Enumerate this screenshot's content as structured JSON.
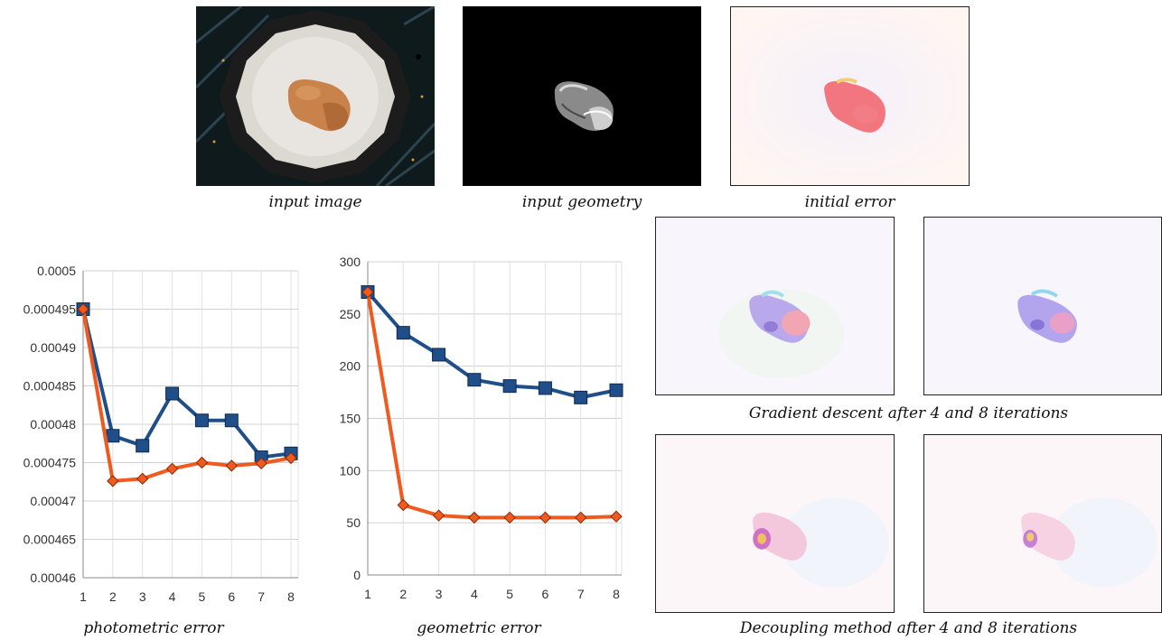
{
  "captions": {
    "input_image": "input image",
    "input_geometry": "input geometry",
    "initial_error": "initial error",
    "gradient_descent": "Gradient descent after 4 and 8 iterations",
    "decoupling": "Decoupling method after 4 and 8 iterations",
    "photometric": "photometric error",
    "geometric": "geometric error"
  },
  "colors": {
    "blue_series": "#1f4e89",
    "orange_series": "#f05a1e",
    "grid": "#d0d0d0"
  },
  "chart_data": [
    {
      "type": "line",
      "title": "",
      "caption": "photometric error",
      "x": [
        1,
        2,
        3,
        4,
        5,
        6,
        7,
        8
      ],
      "ylim": [
        0.00046,
        0.0005
      ],
      "yticks": [
        "0.0005",
        "0.000495",
        "0.00049",
        "0.000485",
        "0.00048",
        "0.000475",
        "0.00047",
        "0.000465",
        "0.00046"
      ],
      "grid": true,
      "series": [
        {
          "marker": "square",
          "color": "#1f4e89",
          "values": [
            0.000495,
            0.0004785,
            0.0004772,
            0.000484,
            0.0004805,
            0.0004805,
            0.0004757,
            0.0004762
          ]
        },
        {
          "marker": "diamond",
          "color": "#f05a1e",
          "values": [
            0.000495,
            0.0004726,
            0.0004729,
            0.0004742,
            0.000475,
            0.0004746,
            0.0004749,
            0.0004756
          ]
        }
      ]
    },
    {
      "type": "line",
      "title": "",
      "caption": "geometric error",
      "x": [
        1,
        2,
        3,
        4,
        5,
        6,
        7,
        8
      ],
      "ylim": [
        0,
        300
      ],
      "yticks": [
        "300",
        "250",
        "200",
        "150",
        "100",
        "50",
        "0"
      ],
      "grid": true,
      "series": [
        {
          "marker": "square",
          "color": "#1f4e89",
          "values": [
            271,
            232,
            211,
            187,
            181,
            179,
            170,
            177
          ]
        },
        {
          "marker": "diamond",
          "color": "#f05a1e",
          "values": [
            271,
            67,
            57,
            55,
            55,
            55,
            55,
            56
          ]
        }
      ]
    }
  ]
}
